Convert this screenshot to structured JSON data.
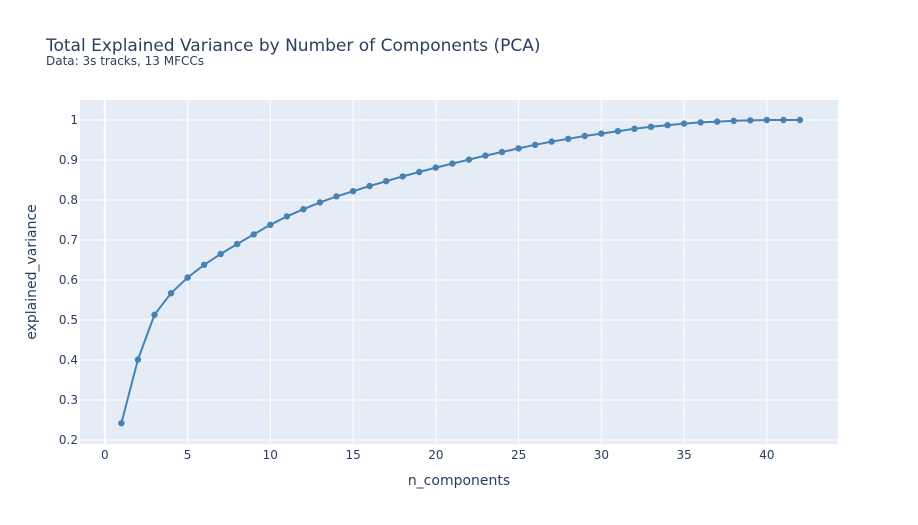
{
  "chart_data": {
    "type": "line",
    "title": "Total Explained Variance by Number of Components (PCA)",
    "subtitle": "Data: 3s tracks, 13 MFCCs",
    "xlabel": "n_components",
    "ylabel": "explained_variance",
    "xlim": [
      -1.5,
      44.3
    ],
    "ylim": [
      0.19,
      1.05
    ],
    "xticks": [
      0,
      5,
      10,
      15,
      20,
      25,
      30,
      35,
      40
    ],
    "yticks": [
      0.2,
      0.3,
      0.4,
      0.5,
      0.6,
      0.7,
      0.8,
      0.9,
      1
    ],
    "grid": true,
    "line_color": "#4682b4",
    "plot_bg": "#e5ecf6",
    "x": [
      1,
      2,
      3,
      4,
      5,
      6,
      7,
      8,
      9,
      10,
      11,
      12,
      13,
      14,
      15,
      16,
      17,
      18,
      19,
      20,
      21,
      22,
      23,
      24,
      25,
      26,
      27,
      28,
      29,
      30,
      31,
      32,
      33,
      34,
      35,
      36,
      37,
      38,
      39,
      40,
      41,
      42
    ],
    "y": [
      0.242,
      0.401,
      0.513,
      0.567,
      0.606,
      0.638,
      0.665,
      0.69,
      0.714,
      0.738,
      0.759,
      0.777,
      0.794,
      0.809,
      0.822,
      0.835,
      0.847,
      0.859,
      0.87,
      0.881,
      0.891,
      0.901,
      0.911,
      0.92,
      0.929,
      0.938,
      0.946,
      0.953,
      0.96,
      0.966,
      0.972,
      0.978,
      0.983,
      0.987,
      0.991,
      0.994,
      0.996,
      0.998,
      0.999,
      1.0,
      1.0,
      1.0
    ]
  }
}
